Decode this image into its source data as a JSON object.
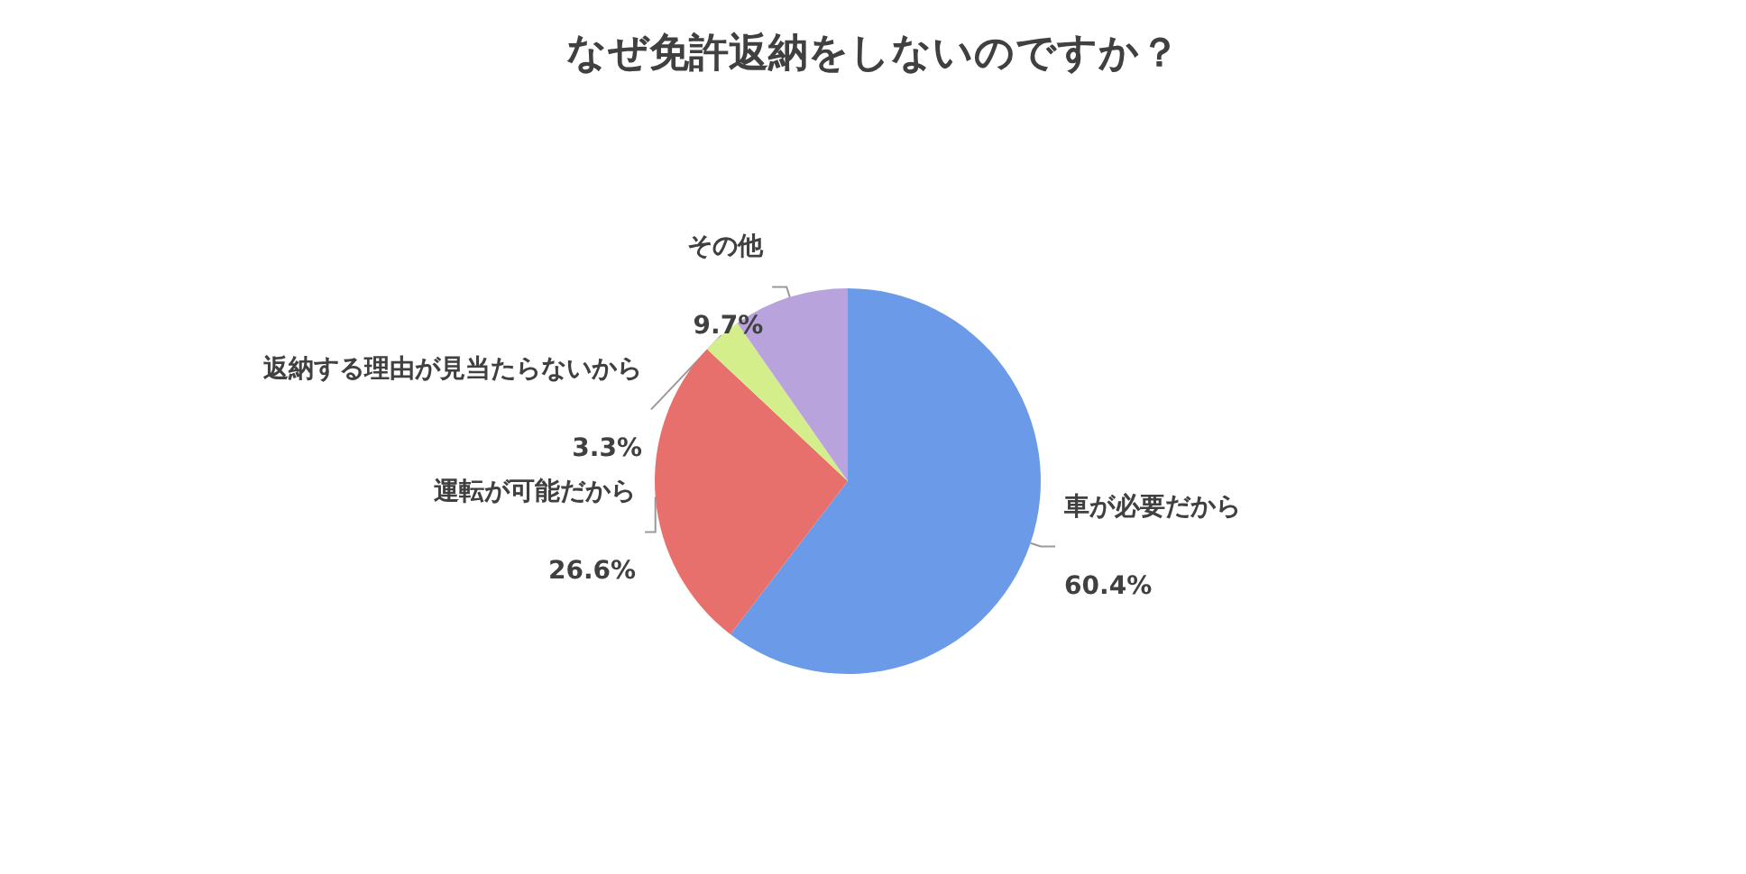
{
  "chart_data": {
    "type": "pie",
    "title": "なぜ免許返納をしないのですか？",
    "categories": [
      "車が必要だから",
      "運転が可能だから",
      "返納する理由が見当たらないから",
      "その他"
    ],
    "values": [
      60.4,
      26.6,
      3.3,
      9.7
    ],
    "colors": [
      "#6b9be8",
      "#e8706c",
      "#d4ee8c",
      "#b8a3dc"
    ],
    "value_labels": [
      "60.4%",
      "26.6%",
      "3.3%",
      "9.7%"
    ]
  }
}
